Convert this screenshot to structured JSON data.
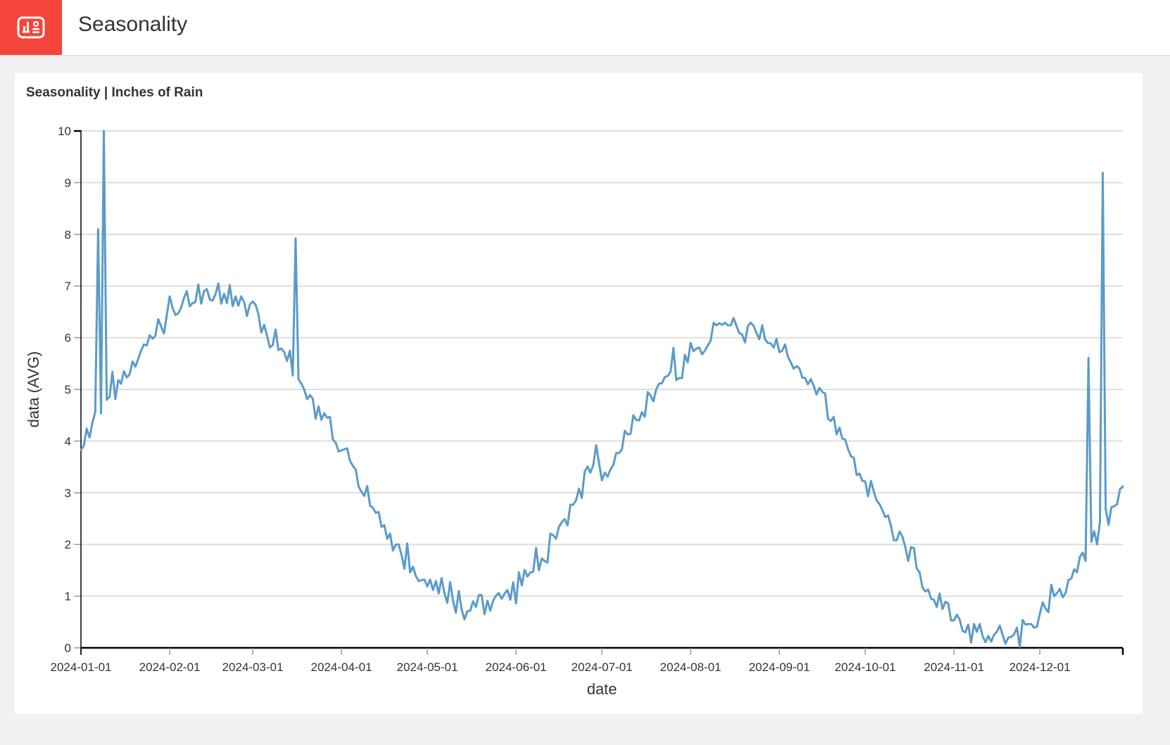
{
  "header": {
    "title": "Seasonality",
    "logo_icon": "dashboard-chart-icon",
    "logo_color": "#f5443a"
  },
  "card": {
    "title": "Seasonality | Inches of Rain"
  },
  "colors": {
    "line": "#5b9bc9",
    "grid": "#dddddd",
    "axis": "#000000",
    "tick": "#999999",
    "text": "#333333"
  },
  "chart_data": {
    "type": "line",
    "title": "Seasonality | Inches of Rain",
    "xlabel": "date",
    "ylabel": "data (AVG)",
    "ylim": [
      0,
      10
    ],
    "yticks": [
      0,
      1,
      2,
      3,
      4,
      5,
      6,
      7,
      8,
      9,
      10
    ],
    "grid": true,
    "x_start": "2024-01-01",
    "x_end": "2024-12-30",
    "x_interval_days": 1,
    "xticks": [
      {
        "label": "2024-01-01",
        "day": 0
      },
      {
        "label": "2024-02-01",
        "day": 31
      },
      {
        "label": "2024-03-01",
        "day": 60
      },
      {
        "label": "2024-04-01",
        "day": 91
      },
      {
        "label": "2024-05-01",
        "day": 121
      },
      {
        "label": "2024-06-01",
        "day": 152
      },
      {
        "label": "2024-07-01",
        "day": 182
      },
      {
        "label": "2024-08-01",
        "day": 213
      },
      {
        "label": "2024-09-01",
        "day": 244
      },
      {
        "label": "2024-10-01",
        "day": 274
      },
      {
        "label": "2024-11-01",
        "day": 305
      },
      {
        "label": "2024-12-01",
        "day": 335
      }
    ],
    "series": [
      {
        "name": "data (AVG)",
        "values": [
          3.83,
          3.91,
          4.24,
          4.07,
          4.36,
          4.56,
          8.1,
          4.54,
          10.0,
          4.8,
          4.86,
          5.34,
          4.81,
          5.18,
          5.11,
          5.35,
          5.23,
          5.29,
          5.54,
          5.44,
          5.59,
          5.75,
          5.87,
          5.85,
          6.05,
          5.98,
          6.04,
          6.36,
          6.22,
          6.08,
          6.44,
          6.8,
          6.58,
          6.44,
          6.47,
          6.58,
          6.77,
          6.9,
          6.61,
          6.67,
          6.69,
          7.03,
          6.66,
          6.9,
          6.94,
          6.74,
          6.72,
          6.84,
          7.05,
          6.66,
          6.85,
          6.67,
          7.02,
          6.61,
          6.8,
          6.62,
          6.8,
          6.69,
          6.42,
          6.64,
          6.7,
          6.64,
          6.45,
          6.1,
          6.25,
          6.04,
          5.81,
          5.86,
          6.16,
          5.76,
          5.79,
          5.72,
          5.55,
          5.75,
          5.27,
          7.92,
          5.2,
          5.11,
          5.0,
          4.81,
          4.89,
          4.82,
          4.43,
          4.67,
          4.41,
          4.54,
          4.45,
          4.47,
          4.03,
          3.97,
          3.8,
          3.82,
          3.84,
          3.86,
          3.62,
          3.52,
          3.45,
          3.12,
          3.02,
          2.94,
          3.13,
          2.75,
          2.71,
          2.61,
          2.63,
          2.34,
          2.37,
          2.11,
          2.21,
          1.88,
          2.0,
          2.0,
          1.8,
          1.53,
          2.02,
          1.46,
          1.57,
          1.39,
          1.29,
          1.31,
          1.32,
          1.19,
          1.32,
          1.12,
          1.29,
          1.05,
          1.35,
          1.05,
          0.87,
          1.27,
          0.91,
          0.68,
          1.1,
          0.74,
          0.55,
          0.71,
          0.72,
          0.9,
          0.79,
          1.02,
          1.02,
          0.65,
          0.91,
          0.72,
          0.91,
          1.01,
          1.06,
          0.95,
          1.05,
          1.12,
          0.93,
          1.27,
          0.86,
          1.46,
          1.21,
          1.51,
          1.38,
          1.46,
          1.47,
          1.93,
          1.5,
          1.73,
          1.68,
          1.65,
          2.21,
          2.18,
          2.11,
          2.34,
          2.43,
          2.49,
          2.37,
          2.77,
          2.77,
          2.86,
          3.08,
          2.9,
          3.41,
          3.51,
          3.39,
          3.54,
          3.92,
          3.58,
          3.24,
          3.39,
          3.31,
          3.45,
          3.54,
          3.77,
          3.77,
          3.84,
          4.2,
          4.13,
          4.14,
          4.5,
          4.41,
          4.4,
          4.56,
          4.47,
          4.95,
          4.88,
          4.77,
          5.01,
          5.11,
          5.12,
          5.24,
          5.26,
          5.34,
          5.8,
          5.18,
          5.22,
          5.22,
          5.67,
          5.52,
          5.9,
          5.74,
          5.79,
          5.81,
          5.68,
          5.75,
          5.85,
          5.94,
          6.29,
          6.24,
          6.28,
          6.25,
          6.29,
          6.24,
          6.24,
          6.38,
          6.23,
          6.09,
          6.06,
          5.91,
          6.23,
          6.29,
          6.23,
          6.09,
          5.97,
          6.24,
          5.97,
          5.9,
          5.89,
          5.81,
          5.98,
          5.72,
          5.75,
          5.87,
          5.63,
          5.52,
          5.4,
          5.45,
          5.41,
          5.23,
          5.22,
          5.1,
          5.2,
          5.07,
          4.9,
          5.03,
          4.95,
          4.92,
          4.43,
          4.39,
          4.47,
          4.13,
          4.26,
          4.05,
          4.03,
          3.84,
          3.71,
          3.68,
          3.34,
          3.37,
          3.23,
          3.22,
          2.93,
          3.23,
          3.02,
          2.85,
          2.78,
          2.66,
          2.53,
          2.56,
          2.36,
          2.08,
          2.08,
          2.25,
          2.15,
          1.95,
          1.68,
          1.95,
          1.93,
          1.53,
          1.46,
          1.17,
          1.09,
          1.13,
          0.95,
          0.93,
          0.79,
          1.05,
          0.75,
          0.89,
          0.86,
          0.53,
          0.53,
          0.64,
          0.55,
          0.33,
          0.3,
          0.45,
          0.1,
          0.46,
          0.31,
          0.46,
          0.23,
          0.11,
          0.23,
          0.12,
          0.25,
          0.31,
          0.43,
          0.25,
          0.08,
          0.2,
          0.21,
          0.26,
          0.39,
          0.02,
          0.54,
          0.45,
          0.46,
          0.46,
          0.39,
          0.41,
          0.66,
          0.88,
          0.76,
          0.69,
          1.22,
          1.0,
          1.06,
          1.14,
          0.98,
          1.06,
          1.31,
          1.34,
          1.52,
          1.46,
          1.76,
          1.84,
          1.68,
          5.61,
          2.05,
          2.26,
          2.0,
          2.44,
          9.19,
          2.69,
          2.38,
          2.72,
          2.74,
          2.78,
          3.07,
          3.12
        ]
      }
    ],
    "legend": null
  }
}
